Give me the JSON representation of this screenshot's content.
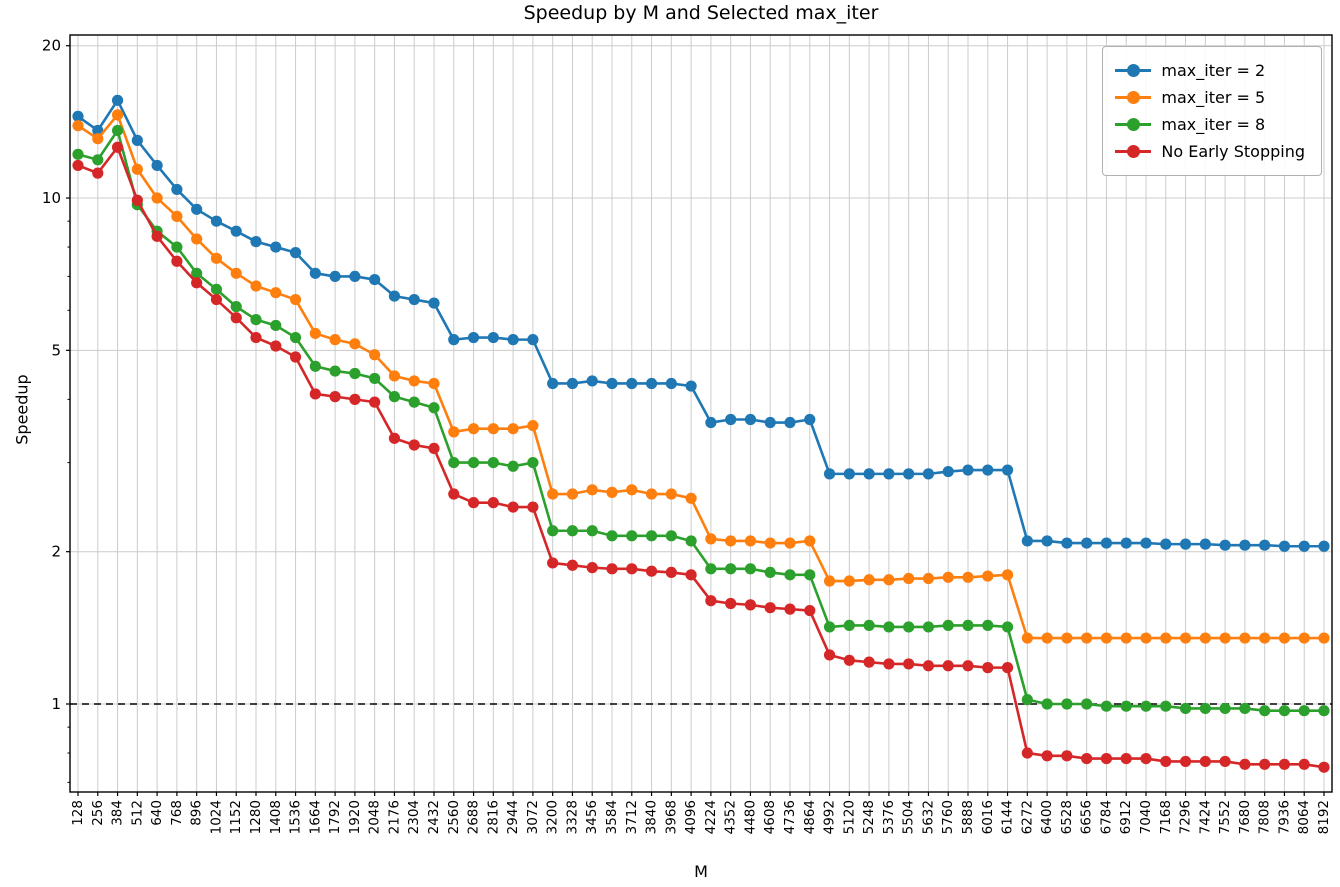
{
  "figure": {
    "title": "Speedup by M and Selected max_iter",
    "xlabel": "M",
    "ylabel": "Speedup"
  },
  "chart_data": {
    "type": "line",
    "title": "Speedup by M and Selected max_iter",
    "xlabel": "M",
    "ylabel": "Speedup",
    "yscale": "log",
    "ylim": [
      0.67,
      21
    ],
    "yticks": [
      20,
      10,
      5,
      2,
      1
    ],
    "yticks_minor": [
      0.7,
      0.8,
      0.9,
      3,
      4,
      6,
      7,
      8,
      9
    ],
    "baseline": 1,
    "grid": true,
    "grid_color": "#cccccc",
    "legend_position": "upper right",
    "x": [
      128,
      256,
      384,
      512,
      640,
      768,
      896,
      1024,
      1152,
      1280,
      1408,
      1536,
      1664,
      1792,
      1920,
      2048,
      2176,
      2304,
      2432,
      2560,
      2688,
      2816,
      2944,
      3072,
      3200,
      3328,
      3456,
      3584,
      3712,
      3840,
      3968,
      4096,
      4224,
      4352,
      4480,
      4608,
      4736,
      4864,
      4992,
      5120,
      5248,
      5376,
      5504,
      5632,
      5760,
      5888,
      6016,
      6144,
      6272,
      6400,
      6528,
      6656,
      6784,
      6912,
      7040,
      7168,
      7296,
      7424,
      7552,
      7680,
      7808,
      7936,
      8064,
      8192
    ],
    "series": [
      {
        "name": "max_iter = 2",
        "color": "#1f77b4",
        "values": [
          14.5,
          13.6,
          15.6,
          13.0,
          11.6,
          10.4,
          9.5,
          9.0,
          8.6,
          8.2,
          8.0,
          7.8,
          7.1,
          7.0,
          7.0,
          6.9,
          6.4,
          6.3,
          6.2,
          5.25,
          5.3,
          5.3,
          5.25,
          5.25,
          4.3,
          4.3,
          4.35,
          4.3,
          4.3,
          4.3,
          4.3,
          4.25,
          3.6,
          3.65,
          3.65,
          3.6,
          3.6,
          3.65,
          2.85,
          2.85,
          2.85,
          2.85,
          2.85,
          2.85,
          2.88,
          2.9,
          2.9,
          2.9,
          2.1,
          2.1,
          2.08,
          2.08,
          2.08,
          2.08,
          2.08,
          2.07,
          2.07,
          2.07,
          2.06,
          2.06,
          2.06,
          2.05,
          2.05,
          2.05
        ]
      },
      {
        "name": "max_iter = 5",
        "color": "#ff7f0e",
        "values": [
          13.9,
          13.1,
          14.6,
          11.4,
          10.0,
          9.2,
          8.3,
          7.6,
          7.1,
          6.7,
          6.5,
          6.3,
          5.4,
          5.25,
          5.15,
          4.9,
          4.45,
          4.35,
          4.3,
          3.45,
          3.5,
          3.5,
          3.5,
          3.55,
          2.6,
          2.6,
          2.65,
          2.62,
          2.65,
          2.6,
          2.6,
          2.55,
          2.12,
          2.1,
          2.1,
          2.08,
          2.08,
          2.1,
          1.75,
          1.75,
          1.76,
          1.76,
          1.77,
          1.77,
          1.78,
          1.78,
          1.79,
          1.8,
          1.35,
          1.35,
          1.35,
          1.35,
          1.35,
          1.35,
          1.35,
          1.35,
          1.35,
          1.35,
          1.35,
          1.35,
          1.35,
          1.35,
          1.35,
          1.35
        ]
      },
      {
        "name": "max_iter = 8",
        "color": "#2ca02c",
        "values": [
          12.2,
          11.9,
          13.6,
          9.7,
          8.6,
          8.0,
          7.1,
          6.6,
          6.1,
          5.75,
          5.6,
          5.3,
          4.65,
          4.55,
          4.5,
          4.4,
          4.05,
          3.95,
          3.85,
          3.0,
          3.0,
          3.0,
          2.95,
          3.0,
          2.2,
          2.2,
          2.2,
          2.15,
          2.15,
          2.15,
          2.15,
          2.1,
          1.85,
          1.85,
          1.85,
          1.82,
          1.8,
          1.8,
          1.42,
          1.43,
          1.43,
          1.42,
          1.42,
          1.42,
          1.43,
          1.43,
          1.43,
          1.42,
          1.02,
          1.0,
          1.0,
          1.0,
          0.99,
          0.99,
          0.99,
          0.99,
          0.98,
          0.98,
          0.98,
          0.98,
          0.97,
          0.97,
          0.97,
          0.97
        ]
      },
      {
        "name": "No Early Stopping",
        "color": "#d62728",
        "values": [
          11.6,
          11.2,
          12.6,
          9.9,
          8.4,
          7.5,
          6.8,
          6.3,
          5.8,
          5.3,
          5.1,
          4.85,
          4.1,
          4.05,
          4.0,
          3.95,
          3.35,
          3.25,
          3.2,
          2.6,
          2.5,
          2.5,
          2.45,
          2.45,
          1.9,
          1.88,
          1.86,
          1.85,
          1.85,
          1.83,
          1.82,
          1.8,
          1.6,
          1.58,
          1.57,
          1.55,
          1.54,
          1.53,
          1.25,
          1.22,
          1.21,
          1.2,
          1.2,
          1.19,
          1.19,
          1.19,
          1.18,
          1.18,
          0.8,
          0.79,
          0.79,
          0.78,
          0.78,
          0.78,
          0.78,
          0.77,
          0.77,
          0.77,
          0.77,
          0.76,
          0.76,
          0.76,
          0.76,
          0.75
        ]
      }
    ]
  }
}
